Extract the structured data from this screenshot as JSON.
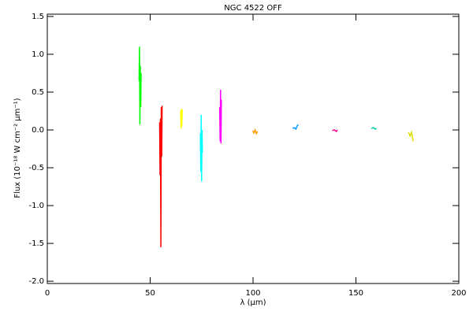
{
  "chart_data": {
    "type": "line",
    "title": "NGC 4522 OFF",
    "x_label": "λ (µm)",
    "y_label": "Flux (10⁻¹⁸ W cm⁻² µm⁻¹)",
    "xlim": [
      0,
      200
    ],
    "xticks": [
      0,
      50,
      100,
      150,
      200
    ],
    "ylim": [
      -2.03,
      1.53
    ],
    "yticks": [
      {
        "value": -2.0,
        "label": "-2.0"
      },
      -1.5,
      {
        "value": -1.0,
        "label": "-1.0"
      },
      -0.5,
      {
        "value": 0.0,
        "label": "0.0"
      },
      0.5,
      {
        "value": 1.0,
        "label": "1.0"
      },
      1.5
    ],
    "series": [
      {
        "color": "#00ff00",
        "x": [
          44.6,
          44.8,
          45.0,
          45.2,
          45.4,
          45.6
        ],
        "values": [
          0.65,
          1.1,
          0.07,
          0.85,
          0.3,
          0.75
        ]
      },
      {
        "color": "#ff0000",
        "x": [
          54.6,
          54.8,
          55.0,
          55.2,
          55.4,
          55.6,
          55.8
        ],
        "values": [
          0.1,
          -0.6,
          0.15,
          -1.55,
          0.3,
          -0.35,
          0.32
        ]
      },
      {
        "color": "#ffff00",
        "x": [
          64.8,
          65.0,
          65.2,
          65.4,
          65.6
        ],
        "values": [
          0.25,
          0.02,
          0.28,
          0.05,
          0.27
        ]
      },
      {
        "color": "#00ffff",
        "x": [
          74.4,
          74.6,
          74.8,
          75.0,
          75.2,
          75.4
        ],
        "values": [
          -0.05,
          -0.55,
          0.2,
          -0.68,
          0.0,
          -0.3
        ]
      },
      {
        "color": "#ff00ff",
        "x": [
          83.8,
          84.0,
          84.2,
          84.4,
          84.6
        ],
        "values": [
          0.3,
          -0.15,
          0.53,
          -0.18,
          0.4
        ]
      },
      {
        "color": "#ff9900",
        "x": [
          99.8,
          100.4,
          101.0,
          101.6,
          102.2
        ],
        "values": [
          -0.01,
          -0.04,
          0.0,
          -0.05,
          -0.02
        ]
      },
      {
        "color": "#0099ff",
        "x": [
          119.2,
          120.0,
          120.8,
          121.4,
          122.0
        ],
        "values": [
          0.02,
          0.03,
          0.01,
          0.05,
          0.07
        ]
      },
      {
        "color": "#ff0099",
        "x": [
          138.5,
          139.5,
          140.5,
          141.0
        ],
        "values": [
          -0.01,
          0.0,
          -0.02,
          0.0
        ]
      },
      {
        "color": "#00ccaa",
        "x": [
          157.5,
          158.5,
          159.5,
          160.0
        ],
        "values": [
          0.02,
          0.03,
          0.01,
          0.02
        ]
      },
      {
        "color": "#dddd00",
        "x": [
          175.5,
          176.3,
          177.0,
          177.8
        ],
        "values": [
          -0.03,
          -0.08,
          -0.03,
          -0.15
        ]
      }
    ]
  }
}
